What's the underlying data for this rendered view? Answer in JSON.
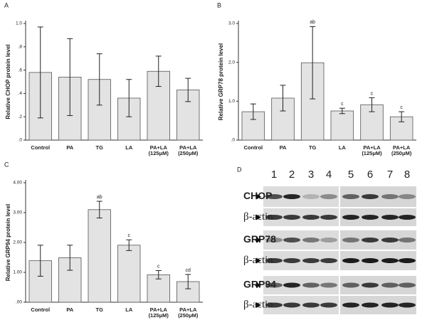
{
  "chart_data": [
    {
      "type": "bar",
      "panel": "A",
      "ylabel": "Relative CHOP protein level",
      "categories": [
        "Control",
        "PA",
        "TG",
        "LA",
        "PA+LA (125μM)",
        "PA+LA (250μM)"
      ],
      "values": [
        0.58,
        0.54,
        0.52,
        0.36,
        0.59,
        0.43
      ],
      "errors": [
        0.39,
        0.33,
        0.22,
        0.16,
        0.13,
        0.1
      ],
      "annotations": [
        null,
        null,
        null,
        null,
        null,
        null
      ],
      "color": "#e3e3e3",
      "ylim": [
        0,
        1.0
      ],
      "yticks": [
        {
          "value": 0,
          "label": ".0"
        },
        {
          "value": 0.2,
          "label": ".2"
        },
        {
          "value": 0.4,
          "label": ".4"
        },
        {
          "value": 0.6,
          "label": ".6"
        },
        {
          "value": 0.8,
          "label": ".8"
        },
        {
          "value": 1.0,
          "label": "1.0"
        }
      ]
    },
    {
      "type": "bar",
      "panel": "B",
      "ylabel": "Relative GRP78 protein level",
      "categories": [
        "Control",
        "PA",
        "TG",
        "LA",
        "PA+LA (125μM)",
        "PA+LA (250μM)"
      ],
      "values": [
        0.73,
        1.08,
        1.99,
        0.75,
        0.91,
        0.6
      ],
      "errors": [
        0.2,
        0.33,
        0.93,
        0.07,
        0.18,
        0.13
      ],
      "annotations": [
        null,
        null,
        "ab",
        "c",
        "c",
        "c"
      ],
      "color": "#e3e3e3",
      "ylim": [
        0,
        3.0
      ],
      "yticks": [
        {
          "value": 0,
          "label": ".0"
        },
        {
          "value": 1,
          "label": "1.0"
        },
        {
          "value": 2,
          "label": "2.0"
        },
        {
          "value": 3,
          "label": "3.0"
        }
      ]
    },
    {
      "type": "bar",
      "panel": "C",
      "ylabel": "Relative GRP94 protein level",
      "categories": [
        "Control",
        "PA",
        "TG",
        "LA",
        "PA+LA (125μM)",
        "PA+LA (250μM)"
      ],
      "values": [
        1.39,
        1.49,
        3.1,
        1.91,
        0.92,
        0.69
      ],
      "errors": [
        0.52,
        0.42,
        0.28,
        0.18,
        0.14,
        0.24
      ],
      "annotations": [
        null,
        null,
        "ab",
        "c",
        "c",
        "cd"
      ],
      "color": "#e3e3e3",
      "ylim": [
        0,
        4.0
      ],
      "yticks": [
        {
          "value": 0,
          "label": ".00"
        },
        {
          "value": 1,
          "label": "1.00"
        },
        {
          "value": 2,
          "label": "2.00"
        },
        {
          "value": 3,
          "label": "3.00"
        },
        {
          "value": 4,
          "label": "4.00"
        }
      ]
    }
  ],
  "blot": {
    "panel": "D",
    "lanes": [
      "1",
      "2",
      "3",
      "4",
      "5",
      "6",
      "7",
      "8"
    ],
    "rows": [
      "CHOP",
      "β-actin",
      "GRP78",
      "β-actin",
      "GRP94",
      "β-actin"
    ]
  }
}
